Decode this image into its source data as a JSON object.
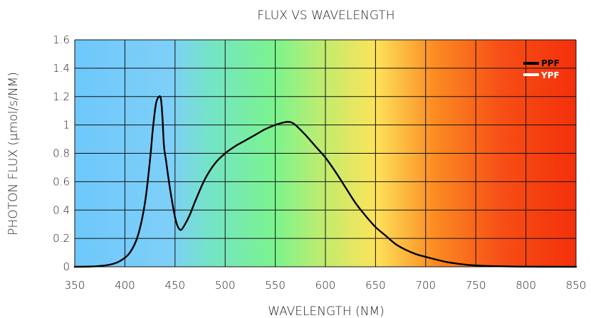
{
  "chart_data": {
    "type": "line",
    "title": "FLUX VS WAVELENGTH",
    "xlabel": "WAVELENGTH (NM)",
    "ylabel": "PHOTON FLUX (µmol/s/NM)",
    "xlim": [
      350,
      850
    ],
    "ylim": [
      0,
      1.6
    ],
    "x_ticks": [
      350,
      400,
      450,
      500,
      550,
      600,
      650,
      700,
      750,
      800,
      850
    ],
    "y_ticks": [
      0,
      0.2,
      0.4,
      0.6,
      0.8,
      1,
      1.2,
      1.4,
      1.6
    ],
    "y_tick_labels": [
      "0",
      "0.2",
      "0.4",
      "0.6",
      "0.8",
      "1",
      "1.2",
      "1.4",
      "1.6"
    ],
    "grid": true,
    "background": "visible-spectrum gradient",
    "legend": {
      "placement": "top-right",
      "entries": [
        "PPF",
        "YPF"
      ]
    },
    "series": [
      {
        "name": "PPF",
        "color": "#000000",
        "x": [
          350,
          370,
          385,
          395,
          405,
          413,
          420,
          425,
          428,
          431,
          434,
          436,
          437.5,
          439,
          441,
          445,
          450,
          453,
          456,
          460,
          465,
          470,
          480,
          490,
          500,
          510,
          520,
          530,
          540,
          550,
          560,
          565,
          570,
          580,
          590,
          600,
          610,
          620,
          630,
          640,
          650,
          660,
          670,
          680,
          690,
          700,
          720,
          740,
          760,
          780,
          800,
          850
        ],
        "y": [
          0,
          0.003,
          0.015,
          0.04,
          0.1,
          0.22,
          0.45,
          0.75,
          0.98,
          1.15,
          1.2,
          1.18,
          1.05,
          0.85,
          0.75,
          0.55,
          0.35,
          0.28,
          0.26,
          0.3,
          0.37,
          0.46,
          0.62,
          0.73,
          0.8,
          0.85,
          0.89,
          0.93,
          0.97,
          1.0,
          1.02,
          1.02,
          1.0,
          0.93,
          0.85,
          0.77,
          0.67,
          0.56,
          0.45,
          0.36,
          0.28,
          0.22,
          0.16,
          0.12,
          0.09,
          0.07,
          0.035,
          0.015,
          0.006,
          0.003,
          0.001,
          0
        ]
      },
      {
        "name": "YPF",
        "color": "#ffffff",
        "x": [],
        "y": []
      }
    ]
  }
}
